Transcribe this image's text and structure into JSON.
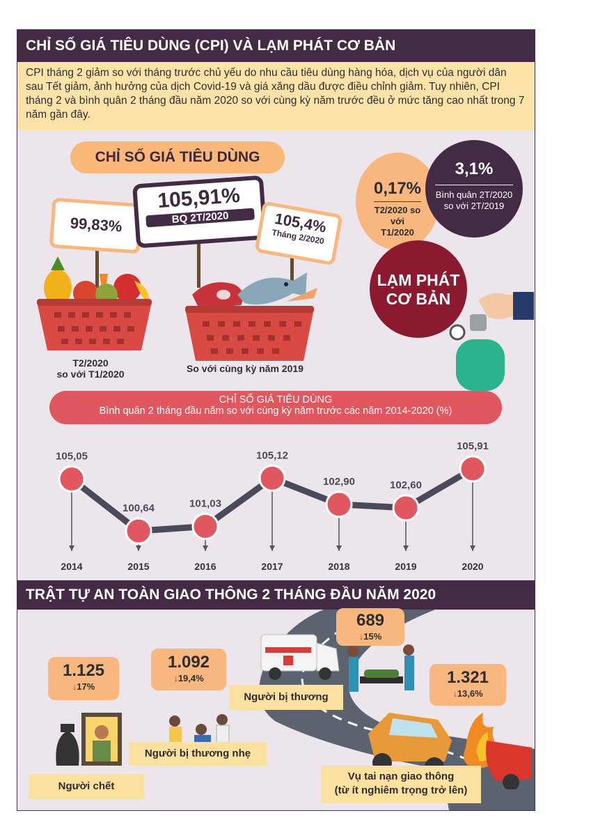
{
  "section1": {
    "title": "CHỈ SỐ GIÁ TIÊU DÙNG (CPI) VÀ LẠM PHÁT CƠ BẢN",
    "intro": "CPI tháng 2 giảm so với tháng trước chủ yếu do nhu cầu tiêu dùng hàng hóa, dịch vụ của người dân sau Tết giảm, ảnh hưởng của dịch Covid-19 và giá xăng dầu được điều chỉnh giảm. Tuy nhiên, CPI tháng 2 và bình quân 2 tháng đầu năm 2020 so với cùng kỳ năm trước đều ở mức tăng cao nhất trong 7 năm gần đây."
  },
  "cpi": {
    "heading": "CHỈ SỐ GIÁ TIÊU DÙNG",
    "mom_value": "99,83%",
    "mom_caption_1": "T2/2020",
    "mom_caption_2": "so với T1/2020",
    "avg_value": "105,91%",
    "avg_sub": "BQ 2T/2020",
    "feb_value": "105,4%",
    "feb_sub": "Tháng 2/2020",
    "yoy_caption": "So với cùng kỳ năm 2019"
  },
  "inflation": {
    "mom_value": "0,17%",
    "mom_caption": "T2/2020 so với T1/2020",
    "avg_value": "3,1%",
    "avg_caption": "Bình quân 2T/2020 so với 2T/2019",
    "title_1": "LẠM PHÁT",
    "title_2": "CƠ BẢN"
  },
  "chart_banner": {
    "title": "CHỈ SỐ GIÁ TIÊU DÙNG",
    "subtitle": "Bình quân 2 tháng đầu năm so với cùng kỳ năm trước các năm 2014-2020 (%)"
  },
  "chart_data": {
    "type": "line",
    "title": "CHỈ SỐ GIÁ TIÊU DÙNG",
    "subtitle": "Bình quân 2 tháng đầu năm so với cùng kỳ năm trước các năm 2014-2020 (%)",
    "categories": [
      "2014",
      "2015",
      "2016",
      "2017",
      "2018",
      "2019",
      "2020"
    ],
    "values": [
      105.05,
      100.64,
      101.03,
      105.12,
      102.9,
      102.6,
      105.91
    ],
    "value_labels": [
      "105,05",
      "100,64",
      "101,03",
      "105,12",
      "102,90",
      "102,60",
      "105,91"
    ],
    "ylim": [
      100,
      106.5
    ],
    "grid": false,
    "colors": {
      "line": "#4a4a5a",
      "marker": "#e0575f"
    }
  },
  "section2": {
    "title": "TRẬT TỰ AN TOÀN GIAO THÔNG 2 THÁNG ĐẦU NĂM 2020"
  },
  "traffic": {
    "deaths": {
      "value": "1.125",
      "change": "17%",
      "label": "Người chết"
    },
    "minor_injured": {
      "value": "1.092",
      "change": "19,4%",
      "label": "Người bị thương nhẹ"
    },
    "injured": {
      "value": "689",
      "change": "15%",
      "label": "Người bị thương"
    },
    "accidents": {
      "value": "1.321",
      "change": "13,6%",
      "label_1": "Vụ tai nạn giao thông",
      "label_2": "(từ ít nghiêm trọng trở lên)"
    }
  },
  "colors": {
    "header": "#432a45",
    "intro_bg": "#fbe2a8",
    "panel_bg": "#ece6ec",
    "accent_red": "#e0575f",
    "orange": "#f7b77f",
    "inflation_dark": "#432a45",
    "inflation_red": "#8b1a30"
  },
  "icons": [
    "fruit-basket-icon",
    "meat-fish-basket-icon",
    "gas-cylinder-icon",
    "hand-icon",
    "ambulance-icon",
    "stretcher-icon",
    "crashed-car-icon",
    "fire-icon",
    "memorial-photo-icon",
    "injured-people-icon",
    "down-arrow-icon"
  ]
}
